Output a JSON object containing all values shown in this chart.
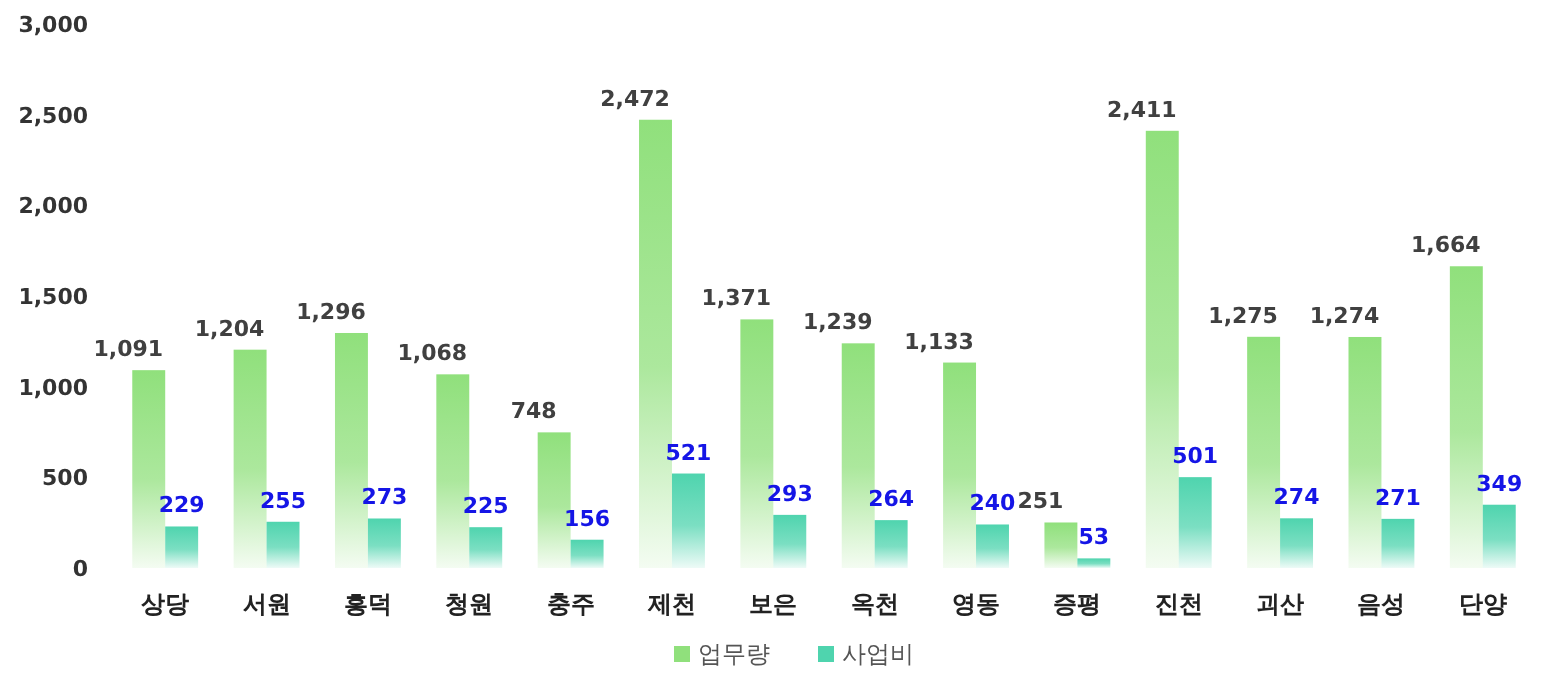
{
  "chart_data": {
    "type": "bar",
    "categories": [
      "상당",
      "서원",
      "흥덕",
      "청원",
      "충주",
      "제천",
      "보은",
      "옥천",
      "영동",
      "증평",
      "진천",
      "괴산",
      "음성",
      "단양"
    ],
    "series": [
      {
        "name": "업무량",
        "color": "#90e07c",
        "values": [
          1091,
          1204,
          1296,
          1068,
          748,
          2472,
          1371,
          1239,
          1133,
          251,
          2411,
          1275,
          1274,
          1664
        ],
        "value_labels": [
          "1,091",
          "1,204",
          "1,296",
          "1,068",
          "748",
          "2,472",
          "1,371",
          "1,239",
          "1,133",
          "251",
          "2,411",
          "1,275",
          "1,274",
          "1,664"
        ]
      },
      {
        "name": "사업비",
        "color": "#4fd4ae",
        "values": [
          229,
          255,
          273,
          225,
          156,
          521,
          293,
          264,
          240,
          53,
          501,
          274,
          271,
          349
        ],
        "value_labels": [
          "229",
          "255",
          "273",
          "225",
          "156",
          "521",
          "293",
          "264",
          "240",
          "53",
          "501",
          "274",
          "271",
          "349"
        ]
      }
    ],
    "ylim": [
      0,
      3000
    ],
    "yticks": [
      0,
      500,
      {
        "value": 1000,
        "label": "1,000"
      },
      {
        "value": 1500,
        "label": "1,500"
      },
      {
        "value": 2000,
        "label": "2,000"
      },
      {
        "value": 2500,
        "label": "2,500"
      },
      {
        "value": 3000,
        "label": "3,000"
      }
    ],
    "grid": false,
    "legend": "bottom"
  }
}
